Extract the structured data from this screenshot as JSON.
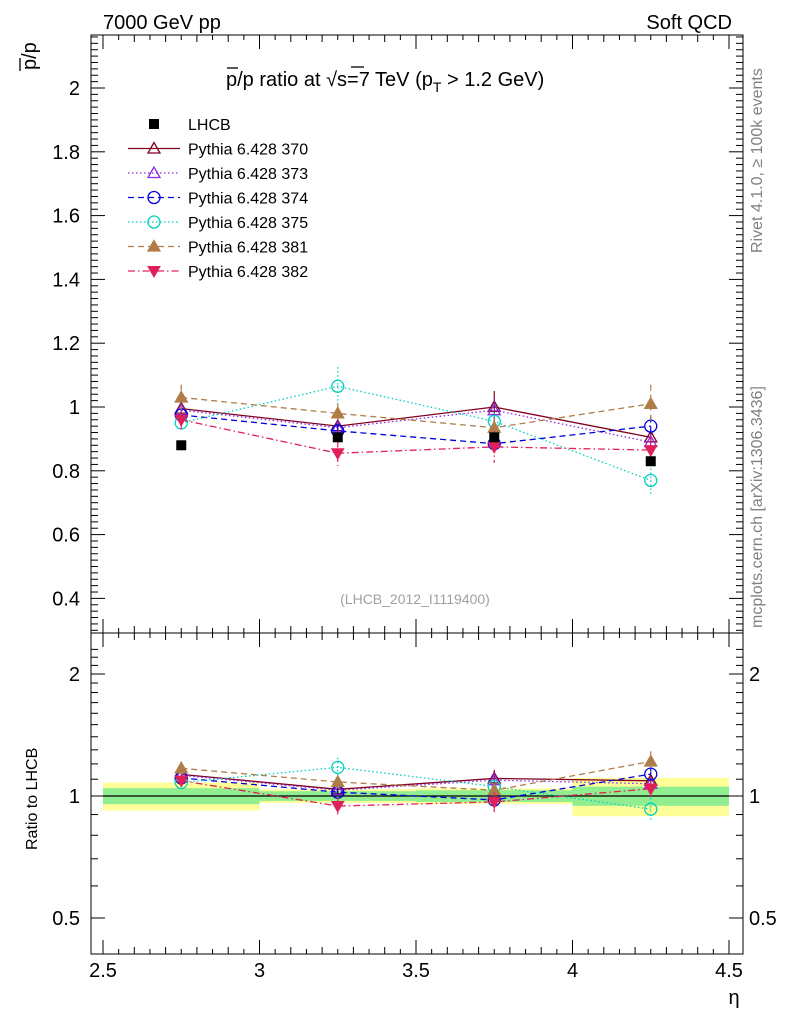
{
  "header": {
    "left": "7000 GeV pp",
    "right": "Soft QCD"
  },
  "side_labels": {
    "rivet": "Rivet 4.1.0, ≥ 100k events",
    "mcplots": "mcplots.cern.ch [arXiv:1306.3436]"
  },
  "chart_data": {
    "type": "scatter",
    "title": "p̄/p ratio at √s=7 TeV (p_T > 1.2 GeV)",
    "title_parts": {
      "pbar": "p",
      "rest1": "/p ratio at ",
      "sqrt": "√",
      "s": "s",
      "rest2": "=7 TeV (p",
      "sub": "T",
      "rest3": " > 1.2 GeV)"
    },
    "ylabel": "p/p",
    "ratio_ylabel": "Ratio to LHCB",
    "xlabel": "η",
    "watermark": "(LHCB_2012_I1119400)",
    "xlim": [
      2.5,
      4.5
    ],
    "ylim": [
      0.3,
      2.17
    ],
    "ratio_ylim": [
      0.4,
      2.3
    ],
    "x_ticks": [
      2.5,
      3,
      3.5,
      4,
      4.5
    ],
    "x_tick_labels": [
      "2.5",
      "3",
      "3.5",
      "4",
      "4.5"
    ],
    "y_ticks": [
      0.4,
      0.6,
      0.8,
      1,
      1.2,
      1.4,
      1.6,
      1.8,
      2
    ],
    "y_tick_labels": [
      "0.4",
      "0.6",
      "0.8",
      "1",
      "1.2",
      "1.4",
      "1.6",
      "1.8",
      "2"
    ],
    "ratio_ticks": [
      0.5,
      1,
      2
    ],
    "ratio_tick_labels": [
      "0.5",
      "1",
      "2"
    ],
    "ratio_tick_labels_right": [
      "0.5",
      "1",
      "2"
    ],
    "x": [
      2.75,
      3.25,
      3.75,
      4.25
    ],
    "data": {
      "name": "LHCB",
      "values": [
        0.88,
        0.905,
        0.905,
        0.83
      ],
      "errors": [
        0.01,
        0.01,
        0.01,
        0.01
      ],
      "bins": [
        [
          2.5,
          3.0
        ],
        [
          3.0,
          3.5
        ],
        [
          3.5,
          4.0
        ],
        [
          4.0,
          4.5
        ]
      ],
      "band_stat": [
        0.04,
        0.025,
        0.03,
        0.045
      ],
      "band_total": [
        0.07,
        0.035,
        0.04,
        0.09
      ],
      "color": "#000000"
    },
    "series": [
      {
        "name": "Pythia 6.428 370",
        "values": [
          0.995,
          0.94,
          1.0,
          0.905
        ],
        "errors": [
          0.02,
          0.02,
          0.05,
          0.02
        ],
        "color": "#800020",
        "dash": "",
        "marker": "triangle-open"
      },
      {
        "name": "Pythia 6.428 373",
        "values": [
          0.99,
          0.935,
          0.99,
          0.89
        ],
        "errors": [
          0.02,
          0.02,
          0.04,
          0.02
        ],
        "color": "#8b2be2",
        "dash": "1.5,2.5",
        "marker": "triangle-open"
      },
      {
        "name": "Pythia 6.428 374",
        "values": [
          0.975,
          0.925,
          0.885,
          0.94
        ],
        "errors": [
          0.02,
          0.02,
          0.03,
          0.03
        ],
        "color": "#0000dd",
        "dash": "6,4",
        "marker": "circle-open"
      },
      {
        "name": "Pythia 6.428 375",
        "values": [
          0.95,
          1.065,
          0.955,
          0.77
        ],
        "errors": [
          0.02,
          0.06,
          0.03,
          0.05
        ],
        "color": "#00d0c0",
        "dash": "1.5,2.5",
        "marker": "circle-open"
      },
      {
        "name": "Pythia 6.428 381",
        "values": [
          1.03,
          0.98,
          0.935,
          1.01
        ],
        "errors": [
          0.04,
          0.03,
          0.03,
          0.06
        ],
        "color": "#b07d48",
        "dash": "6,4",
        "marker": "triangle-filled"
      },
      {
        "name": "Pythia 6.428 382",
        "values": [
          0.96,
          0.855,
          0.875,
          0.865
        ],
        "errors": [
          0.03,
          0.04,
          0.05,
          0.04
        ],
        "color": "#e0205a",
        "dash": "7,3,1.5,3",
        "marker": "triangle-down-filled"
      }
    ]
  }
}
